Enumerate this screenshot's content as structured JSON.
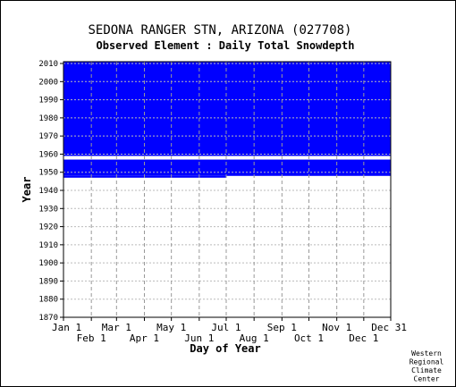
{
  "chart_data": {
    "type": "heatmap",
    "title": "SEDONA RANGER STN, ARIZONA   (027708)",
    "subtitle": "Observed Element : Daily Total Snowdepth",
    "xlabel": "Day of Year",
    "ylabel": "Year",
    "x_ticks_top_row": [
      "Jan 1",
      "Mar 1",
      "May 1",
      "Jul 1",
      "Sep 1",
      "Nov 1",
      "Dec 31"
    ],
    "x_ticks_bottom_row": [
      "Feb 1",
      "Apr 1",
      "Jun 1",
      "Aug 1",
      "Oct 1",
      "Dec 1"
    ],
    "y_ticks": [
      2010,
      2000,
      1990,
      1980,
      1970,
      1960,
      1950,
      1940,
      1930,
      1920,
      1910,
      1900,
      1890,
      1880,
      1870
    ],
    "ylim": [
      1870,
      2011
    ],
    "xlim_day_of_year": [
      1,
      365
    ],
    "grid": true,
    "data_color": "#0000ff",
    "coverage": [
      {
        "from_year": 1948,
        "to_year": 2010,
        "from_day": 1,
        "to_day": 365,
        "status": "data"
      },
      {
        "from_year": 1947,
        "to_year": 1947,
        "from_day": 1,
        "to_day": 182,
        "status": "data"
      }
    ],
    "missing_rows": [
      1957,
      1958
    ],
    "credit": [
      "Western",
      "Regional",
      "Climate",
      "Center"
    ]
  }
}
